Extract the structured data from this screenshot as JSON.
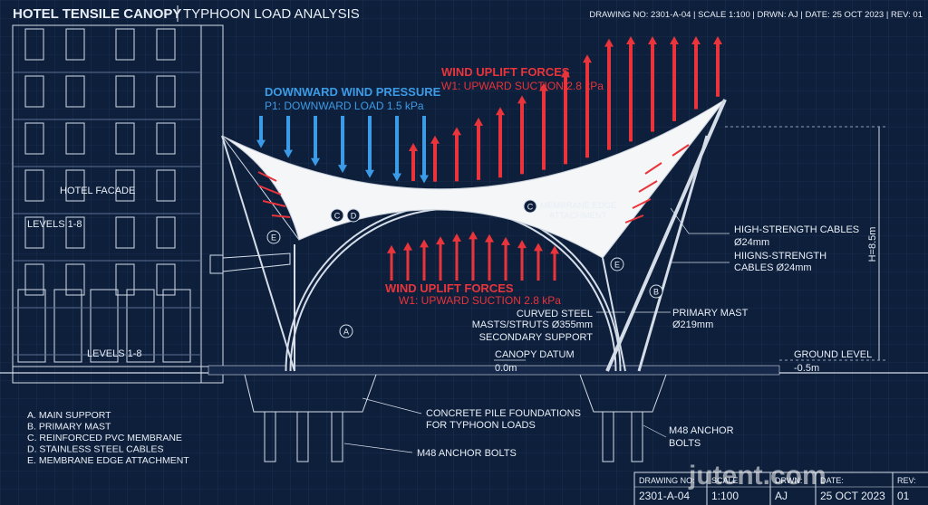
{
  "header": {
    "title": "HOTEL TENSILE CANOPY",
    "subtitle": "TYPHOON LOAD ANALYSIS",
    "info": "DRAWING NO: 2301-A-04 | SCALE 1:100 | DRWN: AJ | DATE: 25 OCT 2023 | REV: 01"
  },
  "loads": {
    "downward_title": "DOWNWARD WIND PRESSURE",
    "downward_text": "P1: DOWNWARD LOAD 1.5 kPa",
    "uplift_title": "WIND UPLIFT FORCES",
    "uplift_text": "W1: UPWARD SUCTION 2.8 kPa",
    "uplift_lower_title": "WIND UPLIFT FORCES",
    "uplift_lower_text": "W1: UPWARD SUCTION 2.8 kPa"
  },
  "building": {
    "facade": "HOTEL FACADE",
    "levels_upper": "LEVELS 1-8",
    "levels_lower": "LEVELS 1-8"
  },
  "markers": [
    "C",
    "D",
    "E",
    "C",
    "E",
    "A",
    "B"
  ],
  "notes": {
    "edge_attachment": [
      "MEMBRANE EDGE",
      "ATTACHMENT"
    ],
    "cables": [
      "HIGH-STRENGTH CABLES",
      "Ø24mm",
      "HIIGNS-STRENGTH",
      "CABLES Ø24mm"
    ],
    "height": "H=8.5m",
    "struts": [
      "CURVED STEEL",
      "MASTS/STRUTS Ø355mm",
      "SECONDARY SUPPORT"
    ],
    "mast": [
      "PRIMARY MAST",
      "Ø219mm"
    ],
    "datum": [
      "CANOPY DATUM",
      "0.0m"
    ],
    "ground": [
      "GROUND LEVEL",
      "-0.5m"
    ],
    "foundations": [
      "CONCRETE PILE FOUNDATIONS",
      "FOR TYPHOON LOADS"
    ],
    "bolts": "M48 ANCHOR BOLTS",
    "bolts_right": [
      "M48 ANCHOR",
      "BOLTS"
    ]
  },
  "legend": [
    "A.  MAIN SUPPORT",
    "B.  PRIMARY MAST",
    "C.  REINFORCED PVC MEMBRANE",
    "D.  STAINLESS STEEL CABLES",
    "E.  MEMBRANE EDGE ATTACHMENT"
  ],
  "title_block": {
    "labels": [
      "DRAWING NO:",
      "SCALE",
      "DRWN:",
      "DATE:",
      "REV:"
    ],
    "values": [
      "2301-A-04",
      "1:100",
      "AJ",
      "25 OCT 2023",
      "01"
    ]
  },
  "watermark": "jutent.com"
}
